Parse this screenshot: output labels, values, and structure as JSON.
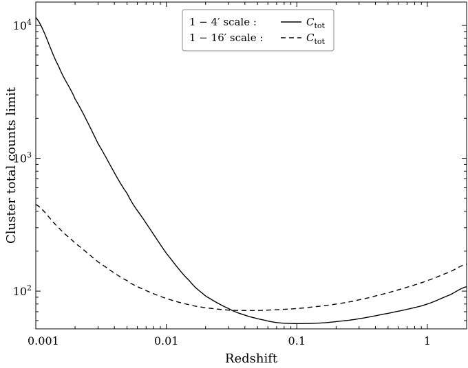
{
  "chart_data": {
    "type": "line",
    "xlabel": "Redshift",
    "ylabel": "Cluster total counts limit",
    "x_scale": "log",
    "y_scale": "log",
    "xlim": [
      0.001,
      2.0
    ],
    "ylim": [
      52,
      15000
    ],
    "x_ticks": [
      {
        "value": 0.001,
        "label": "0.001"
      },
      {
        "value": 0.01,
        "label": "0.01"
      },
      {
        "value": 0.1,
        "label": "0.1"
      },
      {
        "value": 1,
        "label": "1"
      }
    ],
    "y_ticks": [
      {
        "value": 100,
        "base": "10",
        "exp": "2"
      },
      {
        "value": 1000,
        "base": "10",
        "exp": "3"
      },
      {
        "value": 10000,
        "base": "10",
        "exp": "4"
      }
    ],
    "legend_position": "top-center",
    "grid": false,
    "series": [
      {
        "name": "C_tot",
        "scale_label": "1 − 4′  scale :",
        "style": "solid",
        "color": "#000000",
        "x": [
          0.001,
          0.0015,
          0.002,
          0.003,
          0.005,
          0.007,
          0.01,
          0.015,
          0.02,
          0.03,
          0.04,
          0.05,
          0.07,
          0.1,
          0.15,
          0.2,
          0.3,
          0.5,
          0.7,
          1.0,
          1.5,
          2.0
        ],
        "y": [
          11500,
          4900,
          2800,
          1290,
          545,
          325,
          193,
          120,
          92,
          74,
          66,
          62,
          58,
          57,
          57.5,
          59,
          62,
          68,
          73,
          80,
          94,
          108
        ]
      },
      {
        "name": "C_tot",
        "scale_label": "1 − 16′ scale :",
        "style": "dashed",
        "color": "#000000",
        "x": [
          0.001,
          0.0015,
          0.002,
          0.003,
          0.005,
          0.007,
          0.01,
          0.015,
          0.02,
          0.03,
          0.04,
          0.05,
          0.07,
          0.1,
          0.15,
          0.2,
          0.3,
          0.5,
          0.7,
          1.0,
          1.5,
          2.0
        ],
        "y": [
          450,
          300,
          230,
          166,
          120,
          101,
          88,
          79,
          75,
          72,
          71.5,
          71.5,
          72.5,
          74,
          77,
          80,
          86,
          97,
          107,
          120,
          140,
          160
        ]
      }
    ]
  }
}
